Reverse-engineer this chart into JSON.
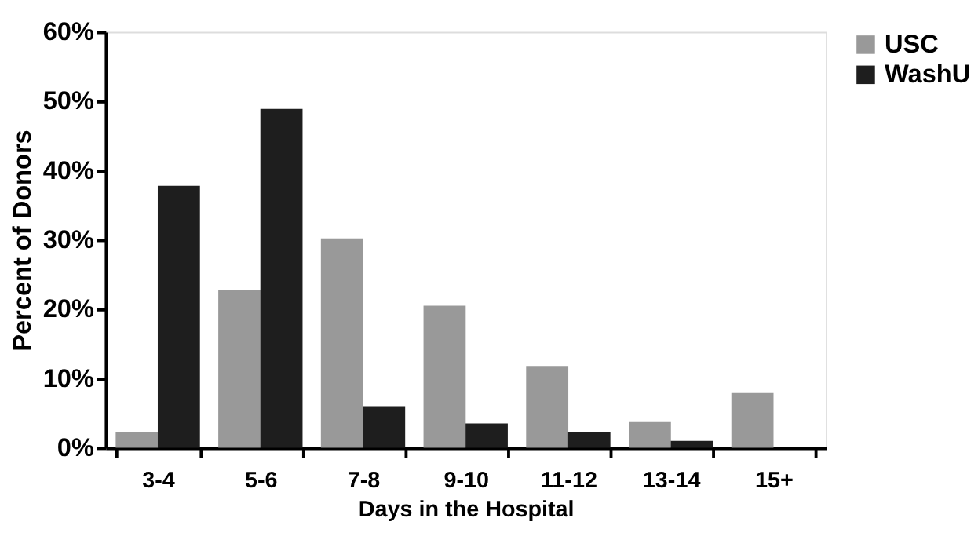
{
  "chart_data": {
    "type": "bar",
    "xlabel": "Days in the Hospital",
    "ylabel": "Percent of Donors",
    "categories": [
      "3-4",
      "5-6",
      "7-8",
      "9-10",
      "11-12",
      "13-14",
      "15+"
    ],
    "series": [
      {
        "name": "USC",
        "color": "#999999",
        "values": [
          2.3,
          22.7,
          30.2,
          20.5,
          11.8,
          3.7,
          7.9
        ]
      },
      {
        "name": "WashU",
        "color": "#1e1e1e",
        "values": [
          37.8,
          48.9,
          6.0,
          3.5,
          2.3,
          1.0,
          0
        ]
      }
    ],
    "ylim": [
      0,
      60
    ],
    "yticks": [
      {
        "value": 0,
        "label": "0%"
      },
      {
        "value": 10,
        "label": "10%"
      },
      {
        "value": 20,
        "label": "20%"
      },
      {
        "value": 30,
        "label": "30%"
      },
      {
        "value": 40,
        "label": "40%"
      },
      {
        "value": 50,
        "label": "50%"
      },
      {
        "value": 60,
        "label": "60%"
      }
    ],
    "grid": false,
    "legend": "right"
  }
}
